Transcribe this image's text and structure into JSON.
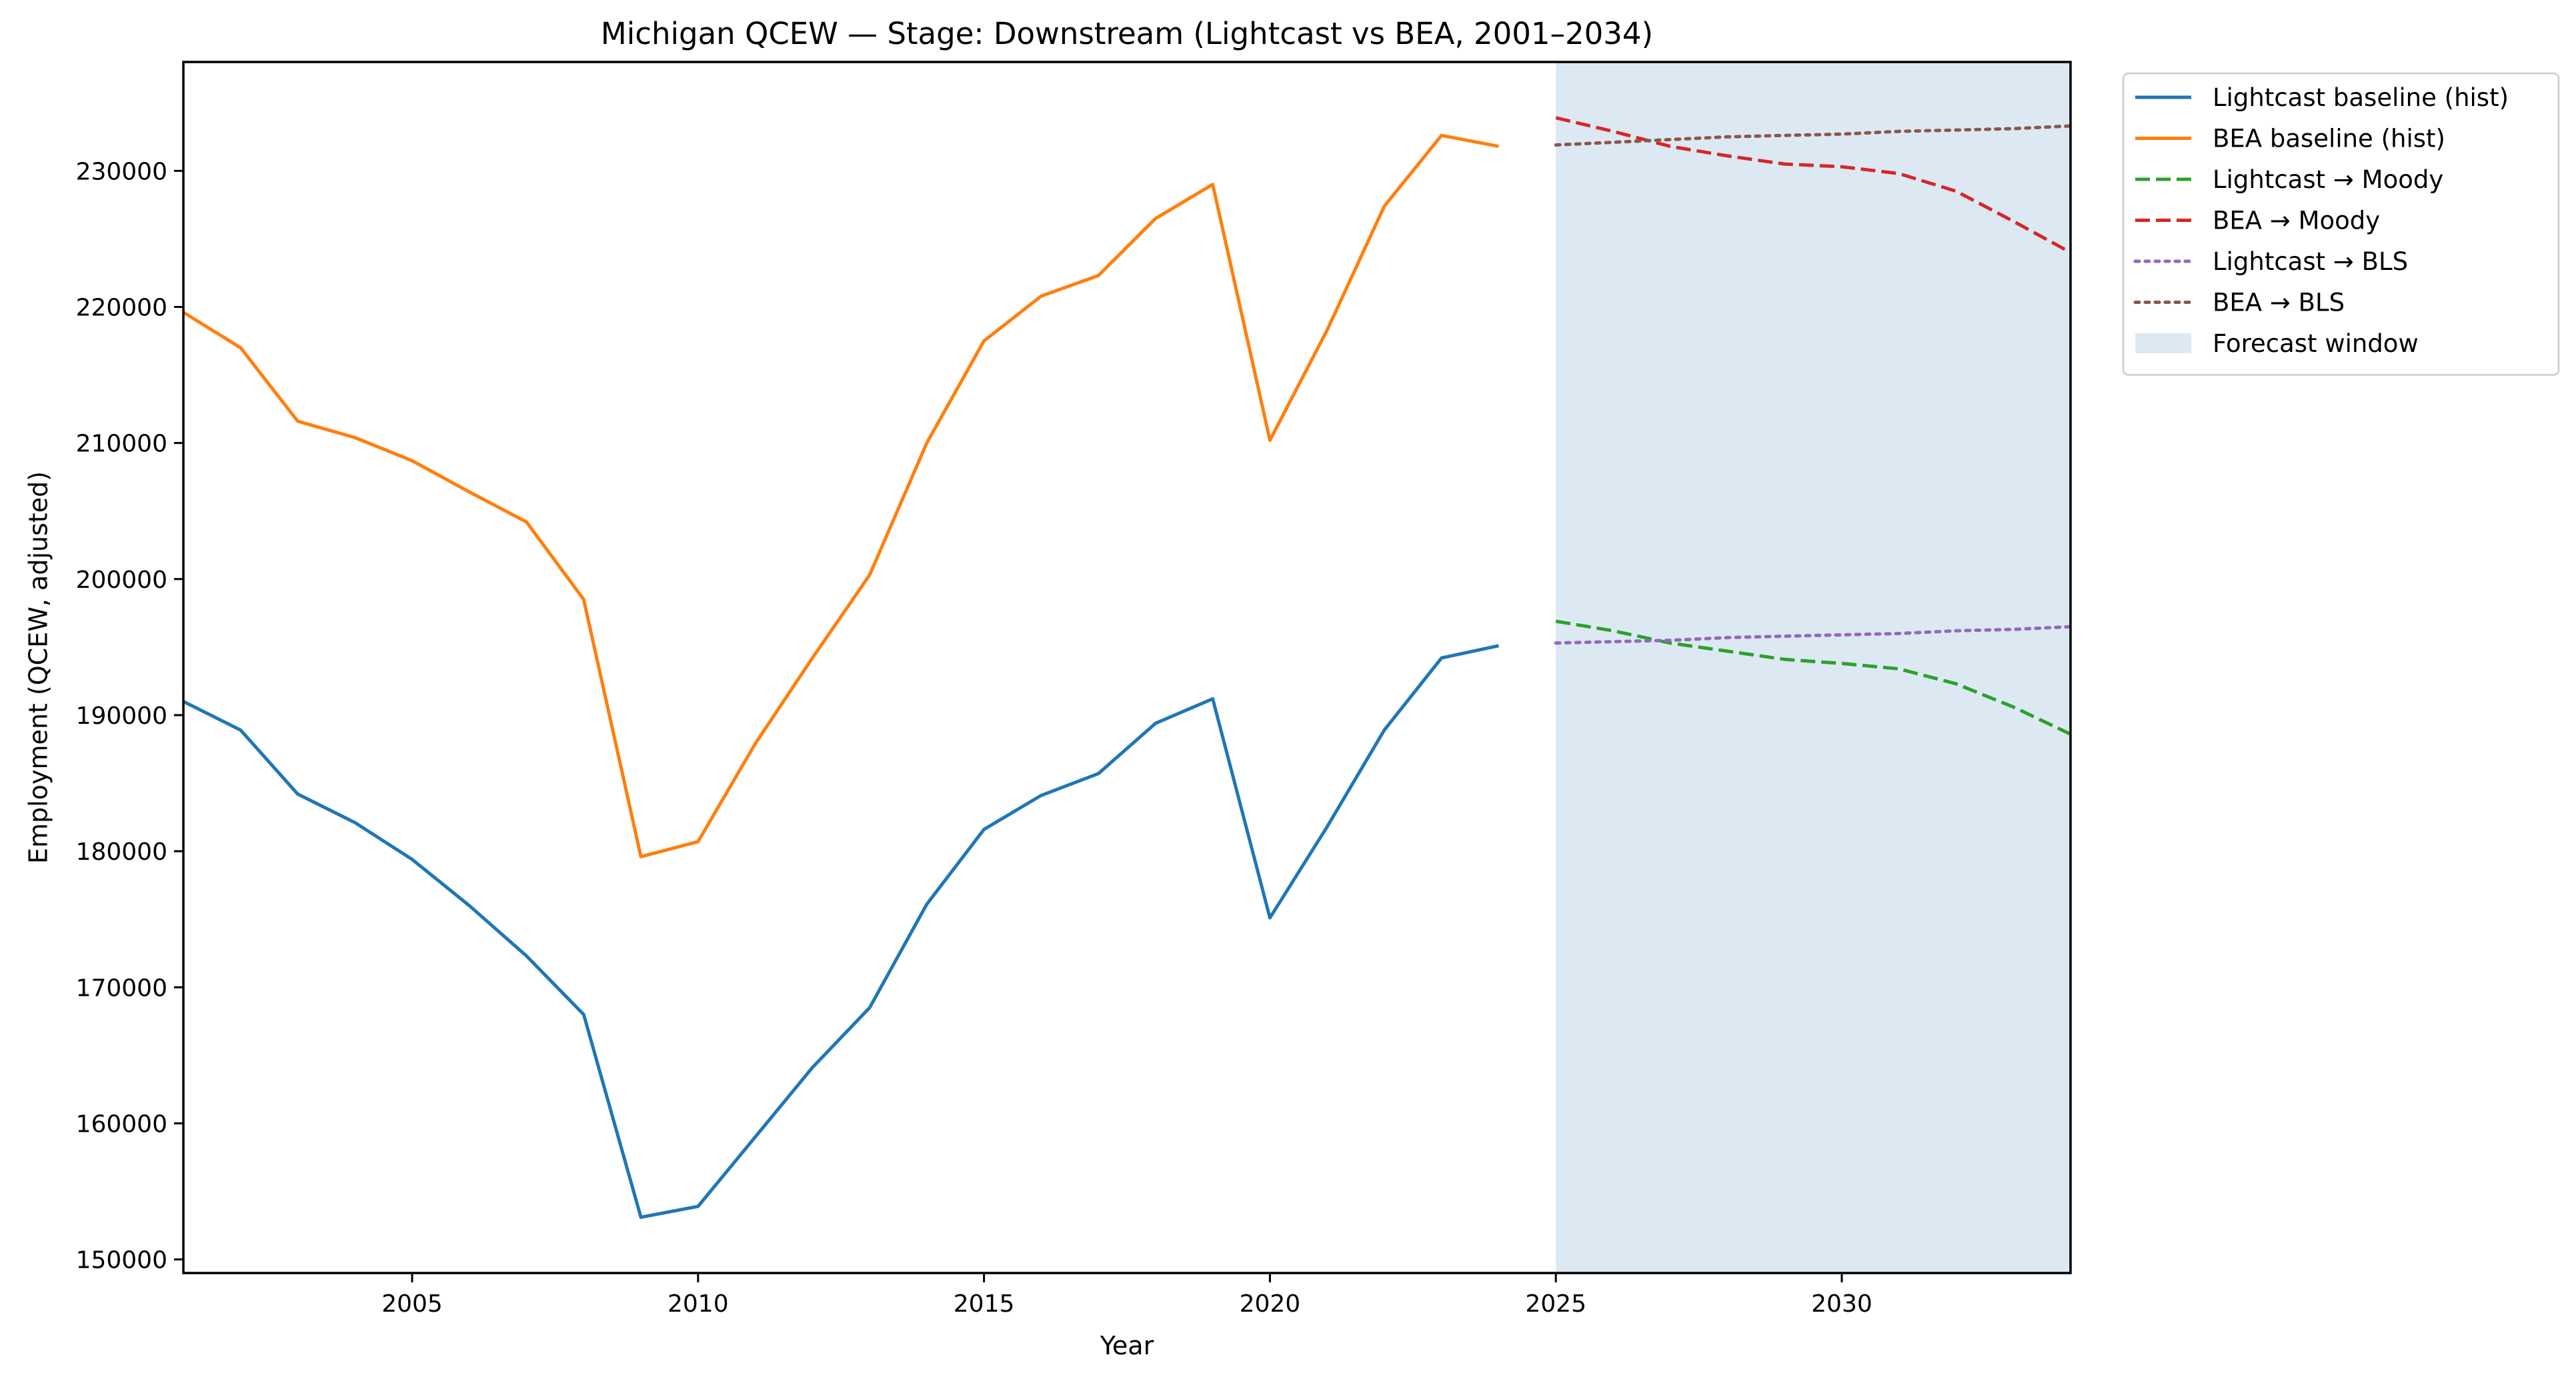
{
  "chart_data": {
    "type": "line",
    "title": "Michigan QCEW — Stage: Downstream (Lightcast vs BEA, 2001–2034)",
    "xlabel": "Year",
    "ylabel": "Employment (QCEW, adjusted)",
    "xlim": [
      2001,
      2034
    ],
    "ylim": [
      149000,
      238000
    ],
    "xticks": [
      2005,
      2010,
      2015,
      2020,
      2025,
      2030
    ],
    "yticks": [
      150000,
      160000,
      170000,
      180000,
      190000,
      200000,
      210000,
      220000,
      230000
    ],
    "grid": false,
    "legend_position": "outside right, top",
    "forecast_window": {
      "label": "Forecast window",
      "x_start": 2025,
      "x_end": 2034,
      "color": "#dce9f3"
    },
    "series": [
      {
        "name": "Lightcast baseline (hist)",
        "color": "#1f77b4",
        "style": "solid",
        "x": [
          2001,
          2002,
          2003,
          2004,
          2005,
          2006,
          2007,
          2008,
          2009,
          2010,
          2011,
          2012,
          2013,
          2014,
          2015,
          2016,
          2017,
          2018,
          2019,
          2020,
          2021,
          2022,
          2023,
          2024
        ],
        "y": [
          191000,
          188900,
          184200,
          182100,
          179400,
          176000,
          172300,
          168000,
          153100,
          153900,
          159000,
          164100,
          168500,
          176100,
          181600,
          184100,
          185700,
          189400,
          191200,
          175100,
          181800,
          188900,
          194200,
          195100
        ]
      },
      {
        "name": "BEA baseline (hist)",
        "color": "#ff7f0e",
        "style": "solid",
        "x": [
          2001,
          2002,
          2003,
          2004,
          2005,
          2006,
          2007,
          2008,
          2009,
          2010,
          2011,
          2012,
          2013,
          2014,
          2015,
          2016,
          2017,
          2018,
          2019,
          2020,
          2021,
          2022,
          2023,
          2024
        ],
        "y": [
          219600,
          217000,
          211600,
          210400,
          208700,
          206400,
          204200,
          198500,
          179600,
          180700,
          187900,
          194200,
          200300,
          210000,
          217500,
          220800,
          222300,
          226500,
          229000,
          210200,
          218300,
          227400,
          232600,
          231800
        ]
      },
      {
        "name": "Lightcast → Moody",
        "color": "#2ca02c",
        "style": "dashed",
        "x": [
          2025,
          2026,
          2027,
          2028,
          2029,
          2030,
          2031,
          2032,
          2033,
          2034
        ],
        "y": [
          196900,
          196200,
          195300,
          194700,
          194100,
          193800,
          193400,
          192300,
          190600,
          188600
        ]
      },
      {
        "name": "BEA → Moody",
        "color": "#d62728",
        "style": "dashed",
        "x": [
          2025,
          2026,
          2027,
          2028,
          2029,
          2030,
          2031,
          2032,
          2033,
          2034
        ],
        "y": [
          233900,
          232900,
          231800,
          231100,
          230500,
          230300,
          229800,
          228500,
          226300,
          224000
        ]
      },
      {
        "name": "Lightcast → BLS",
        "color": "#9467bd",
        "style": "dotted",
        "x": [
          2025,
          2026,
          2027,
          2028,
          2029,
          2030,
          2031,
          2032,
          2033,
          2034
        ],
        "y": [
          195300,
          195400,
          195500,
          195700,
          195800,
          195900,
          196000,
          196200,
          196300,
          196500
        ]
      },
      {
        "name": "BEA → BLS",
        "color": "#8c564b",
        "style": "dotted",
        "x": [
          2025,
          2026,
          2027,
          2028,
          2029,
          2030,
          2031,
          2032,
          2033,
          2034
        ],
        "y": [
          231900,
          232100,
          232300,
          232500,
          232600,
          232700,
          232900,
          233000,
          233100,
          233300
        ]
      }
    ]
  }
}
